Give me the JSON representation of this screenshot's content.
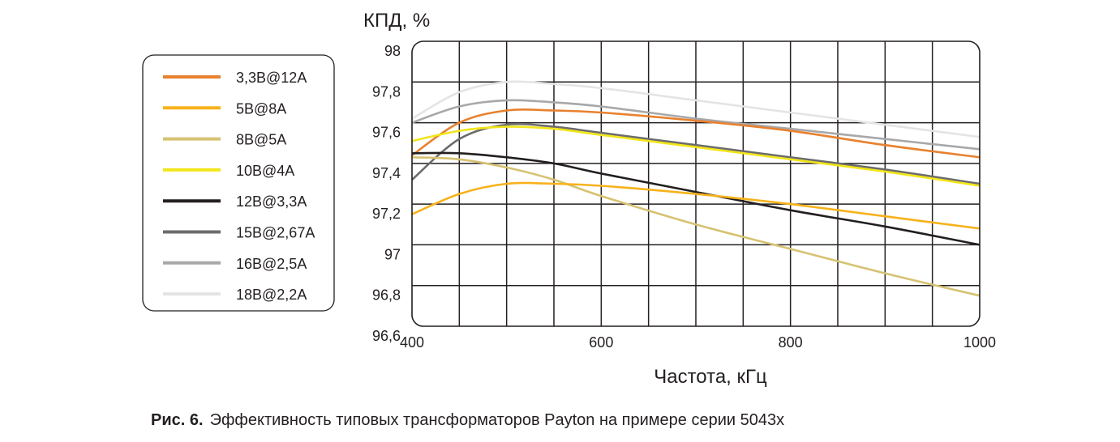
{
  "chart_data": {
    "type": "line",
    "y_title": "КПД, %",
    "x_title": "Частота, кГц",
    "xlim": [
      400,
      1000
    ],
    "ylim": [
      96.6,
      98.0
    ],
    "x_ticks": [
      400,
      600,
      800,
      1000
    ],
    "x_tick_labels": [
      "400",
      "600",
      "800",
      "1000"
    ],
    "y_ticks": [
      96.6,
      96.8,
      97.0,
      97.2,
      97.4,
      97.6,
      97.8,
      98.0
    ],
    "y_tick_labels": [
      "96,6",
      "96,8",
      "97",
      "97,2",
      "97,4",
      "97,6",
      "97,8",
      "98"
    ],
    "grid": true,
    "legend_position": "left",
    "series": [
      {
        "name": "3,3В@12А",
        "color": "#e8812e",
        "points": [
          [
            400,
            97.44
          ],
          [
            450,
            97.6
          ],
          [
            500,
            97.66
          ],
          [
            550,
            97.66
          ],
          [
            600,
            97.65
          ],
          [
            700,
            97.61
          ],
          [
            800,
            97.56
          ],
          [
            900,
            97.49
          ],
          [
            1000,
            97.43
          ]
        ]
      },
      {
        "name": "5В@8А",
        "color": "#f7b21b",
        "points": [
          [
            400,
            97.15
          ],
          [
            450,
            97.25
          ],
          [
            500,
            97.3
          ],
          [
            550,
            97.3
          ],
          [
            600,
            97.29
          ],
          [
            700,
            97.25
          ],
          [
            800,
            97.2
          ],
          [
            900,
            97.14
          ],
          [
            1000,
            97.08
          ]
        ]
      },
      {
        "name": "8В@5А",
        "color": "#d6c272",
        "points": [
          [
            400,
            97.43
          ],
          [
            450,
            97.42
          ],
          [
            500,
            97.38
          ],
          [
            550,
            97.32
          ],
          [
            600,
            97.24
          ],
          [
            700,
            97.1
          ],
          [
            800,
            96.98
          ],
          [
            900,
            96.86
          ],
          [
            1000,
            96.75
          ]
        ]
      },
      {
        "name": "10В@4А",
        "color": "#f2e51a",
        "points": [
          [
            400,
            97.51
          ],
          [
            450,
            97.56
          ],
          [
            500,
            97.58
          ],
          [
            550,
            97.57
          ],
          [
            600,
            97.54
          ],
          [
            700,
            97.48
          ],
          [
            800,
            97.42
          ],
          [
            900,
            97.36
          ],
          [
            1000,
            97.29
          ]
        ]
      },
      {
        "name": "12В@3,3А",
        "color": "#231f20",
        "points": [
          [
            400,
            97.45
          ],
          [
            450,
            97.45
          ],
          [
            500,
            97.43
          ],
          [
            550,
            97.4
          ],
          [
            600,
            97.35
          ],
          [
            700,
            97.26
          ],
          [
            800,
            97.17
          ],
          [
            900,
            97.09
          ],
          [
            1000,
            97.0
          ]
        ]
      },
      {
        "name": "15В@2,67А",
        "color": "#6b6b6c",
        "points": [
          [
            400,
            97.32
          ],
          [
            450,
            97.52
          ],
          [
            500,
            97.59
          ],
          [
            550,
            97.58
          ],
          [
            600,
            97.55
          ],
          [
            700,
            97.49
          ],
          [
            800,
            97.43
          ],
          [
            900,
            97.37
          ],
          [
            1000,
            97.3
          ]
        ]
      },
      {
        "name": "16В@2,5А",
        "color": "#a7a8aa",
        "points": [
          [
            400,
            97.6
          ],
          [
            450,
            97.68
          ],
          [
            500,
            97.71
          ],
          [
            550,
            97.7
          ],
          [
            600,
            97.68
          ],
          [
            700,
            97.62
          ],
          [
            800,
            97.57
          ],
          [
            900,
            97.52
          ],
          [
            1000,
            97.47
          ]
        ]
      },
      {
        "name": "18В@2,2А",
        "color": "#e4e4e4",
        "points": [
          [
            400,
            97.62
          ],
          [
            450,
            97.75
          ],
          [
            500,
            97.8
          ],
          [
            550,
            97.79
          ],
          [
            600,
            97.77
          ],
          [
            700,
            97.71
          ],
          [
            800,
            97.65
          ],
          [
            900,
            97.59
          ],
          [
            1000,
            97.53
          ]
        ]
      }
    ]
  },
  "caption": {
    "label": "Рис. 6.",
    "text": "Эффективность типовых трансформаторов Payton на примере серии 5043х"
  }
}
